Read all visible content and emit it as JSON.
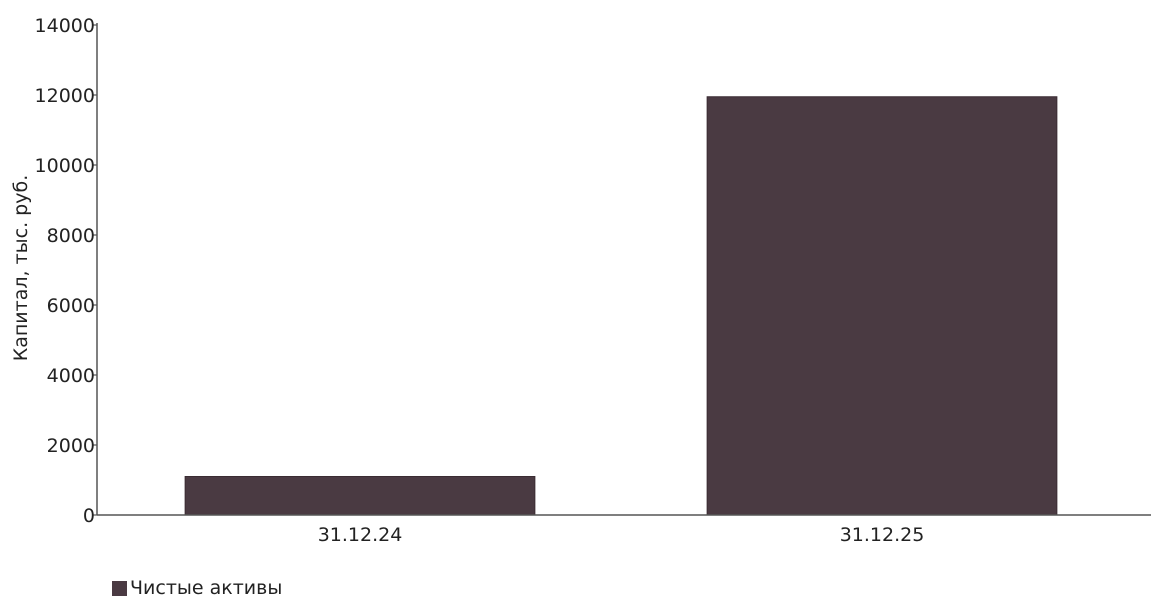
{
  "chart_data": {
    "type": "bar",
    "categories": [
      "31.12.24",
      "31.12.25"
    ],
    "series": [
      {
        "name": "Чистые активы",
        "values": [
          1100,
          11950
        ]
      }
    ],
    "ylabel": "Капитал, тыс. руб.",
    "xlabel": "",
    "ylim": [
      0,
      14000
    ],
    "yticks": [
      0,
      2000,
      4000,
      6000,
      8000,
      10000,
      12000,
      14000
    ],
    "grid": false,
    "legend_position": "bottom-left",
    "colors": {
      "bar": "#4a3a42",
      "axis": "#555555",
      "background": "#ffffff"
    }
  }
}
